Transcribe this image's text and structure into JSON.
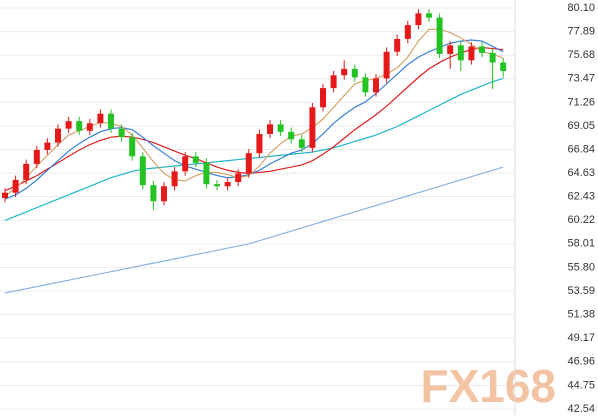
{
  "chart_data": {
    "type": "candlestick",
    "watermark": "FX168",
    "ylim": [
      41.88,
      80.85
    ],
    "yticks": [
      {
        "value": 80.1,
        "label": "80.10"
      },
      77.89,
      75.68,
      73.47,
      71.26,
      69.05,
      66.84,
      64.63,
      62.43,
      60.22,
      58.01,
      {
        "value": 55.8,
        "label": "55.80"
      },
      53.59,
      51.38,
      49.17,
      46.96,
      44.75,
      42.54
    ],
    "grid": true,
    "up_color": "#e51919",
    "down_color": "#22c322",
    "open": [
      62.3,
      62.8,
      64.0,
      65.5,
      66.8,
      67.5,
      68.8,
      69.5,
      68.6,
      69.3,
      70.2,
      68.8,
      68.0,
      66.2,
      63.5,
      62.0,
      63.4,
      64.8,
      66.2,
      65.6,
      63.6,
      63.4,
      63.8,
      64.6,
      66.5,
      68.3,
      69.2,
      68.5,
      67.8,
      67.0,
      70.8,
      72.6,
      73.8,
      74.4,
      73.6,
      72.2,
      73.5,
      76.0,
      77.2,
      78.5,
      79.6,
      79.2,
      75.8,
      76.6,
      75.2,
      76.5,
      75.9,
      75.0
    ],
    "high": [
      63.2,
      64.4,
      65.9,
      67.2,
      67.9,
      69.2,
      69.9,
      69.9,
      69.7,
      70.6,
      70.6,
      69.2,
      68.4,
      66.6,
      63.9,
      63.8,
      65.2,
      66.6,
      66.6,
      66.0,
      64.0,
      64.2,
      65.0,
      66.9,
      68.7,
      69.6,
      69.6,
      68.9,
      68.2,
      71.2,
      73.0,
      74.2,
      75.2,
      74.8,
      74.0,
      73.9,
      76.4,
      77.6,
      78.9,
      80.0,
      80.0,
      79.6,
      77.0,
      77.0,
      76.9,
      76.9,
      76.3,
      75.4
    ],
    "low": [
      61.9,
      62.4,
      63.6,
      65.1,
      66.4,
      67.1,
      68.4,
      68.2,
      68.2,
      68.9,
      68.4,
      67.6,
      65.8,
      63.1,
      61.2,
      61.6,
      63.0,
      64.4,
      65.2,
      63.2,
      63.0,
      63.0,
      63.4,
      64.2,
      66.1,
      67.9,
      68.1,
      67.4,
      66.6,
      66.6,
      70.4,
      72.2,
      73.4,
      73.2,
      71.8,
      71.8,
      73.1,
      75.6,
      76.8,
      78.1,
      78.8,
      75.4,
      74.4,
      74.2,
      74.8,
      75.5,
      72.5,
      73.6
    ],
    "close": [
      62.8,
      64.0,
      65.5,
      66.8,
      67.5,
      68.8,
      69.5,
      68.6,
      69.3,
      70.2,
      68.8,
      68.0,
      66.2,
      63.5,
      62.0,
      63.4,
      64.8,
      66.2,
      65.6,
      63.6,
      63.4,
      63.8,
      64.6,
      66.5,
      68.3,
      69.2,
      68.5,
      67.8,
      67.0,
      70.8,
      72.6,
      73.8,
      74.4,
      73.6,
      72.2,
      73.5,
      76.0,
      77.2,
      78.5,
      79.6,
      79.2,
      75.8,
      76.6,
      75.2,
      76.5,
      75.9,
      75.0,
      74.2
    ],
    "lines": [
      {
        "color": "#8cb4e0",
        "values": [
          53.4,
          53.6,
          53.8,
          54.0,
          54.2,
          54.4,
          54.6,
          54.8,
          55.0,
          55.2,
          55.4,
          55.6,
          55.8,
          56.0,
          56.2,
          56.4,
          56.6,
          56.8,
          57.0,
          57.2,
          57.4,
          57.6,
          57.8,
          58.0,
          58.3,
          58.6,
          58.9,
          59.2,
          59.5,
          59.8,
          60.1,
          60.4,
          60.7,
          61.0,
          61.3,
          61.6,
          61.9,
          62.2,
          62.5,
          62.8,
          63.1,
          63.4,
          63.7,
          64.0,
          64.3,
          64.6,
          64.9,
          65.2
        ]
      },
      {
        "color": "#1fb5c8",
        "values": [
          60.2,
          60.6,
          61.0,
          61.4,
          61.8,
          62.2,
          62.6,
          63.0,
          63.4,
          63.8,
          64.2,
          64.5,
          64.8,
          65.0,
          65.1,
          65.2,
          65.3,
          65.4,
          65.5,
          65.6,
          65.7,
          65.8,
          65.9,
          66.0,
          66.1,
          66.2,
          66.3,
          66.4,
          66.5,
          66.6,
          66.8,
          67.0,
          67.3,
          67.6,
          67.9,
          68.2,
          68.6,
          69.0,
          69.5,
          70.0,
          70.5,
          71.0,
          71.5,
          72.0,
          72.4,
          72.8,
          73.2,
          73.5
        ]
      },
      {
        "color": "#e02020",
        "values": [
          63.0,
          63.4,
          63.9,
          64.4,
          65.0,
          65.6,
          66.2,
          66.8,
          67.3,
          67.7,
          68.0,
          68.1,
          68.0,
          67.8,
          67.5,
          67.1,
          66.7,
          66.3,
          66.0,
          65.6,
          65.2,
          64.9,
          64.7,
          64.6,
          64.7,
          64.8,
          65.0,
          65.2,
          65.4,
          65.8,
          66.4,
          67.1,
          67.9,
          68.7,
          69.4,
          70.1,
          70.9,
          71.8,
          72.7,
          73.6,
          74.4,
          75.0,
          75.5,
          75.9,
          76.2,
          76.4,
          76.3,
          76.2
        ]
      },
      {
        "color": "#3a7fd5",
        "values": [
          62.2,
          62.6,
          63.2,
          64.0,
          64.9,
          65.8,
          66.7,
          67.4,
          68.0,
          68.5,
          68.8,
          68.9,
          68.7,
          68.0,
          67.2,
          66.5,
          65.8,
          65.3,
          65.0,
          64.7,
          64.4,
          64.2,
          64.3,
          64.5,
          64.9,
          65.5,
          66.0,
          66.5,
          66.8,
          67.4,
          68.3,
          69.3,
          70.1,
          70.8,
          71.3,
          72.1,
          73.0,
          73.9,
          74.8,
          75.5,
          76.0,
          76.4,
          76.8,
          77.0,
          77.1,
          77.0,
          76.5,
          76.0
        ]
      },
      {
        "color": "#d4a46a",
        "values": [
          62.5,
          63.2,
          64.2,
          65.3,
          66.3,
          67.3,
          68.2,
          68.6,
          69.0,
          69.4,
          69.3,
          69.0,
          68.2,
          67.0,
          65.7,
          64.6,
          64.0,
          63.9,
          64.4,
          64.7,
          64.7,
          64.5,
          64.2,
          64.4,
          65.3,
          66.5,
          67.4,
          68.1,
          68.3,
          68.9,
          69.7,
          70.8,
          71.9,
          73.0,
          73.3,
          73.5,
          73.9,
          74.5,
          75.5,
          77.0,
          78.1,
          78.1,
          77.8,
          77.3,
          76.7,
          76.0,
          75.8,
          75.4
        ]
      }
    ]
  }
}
